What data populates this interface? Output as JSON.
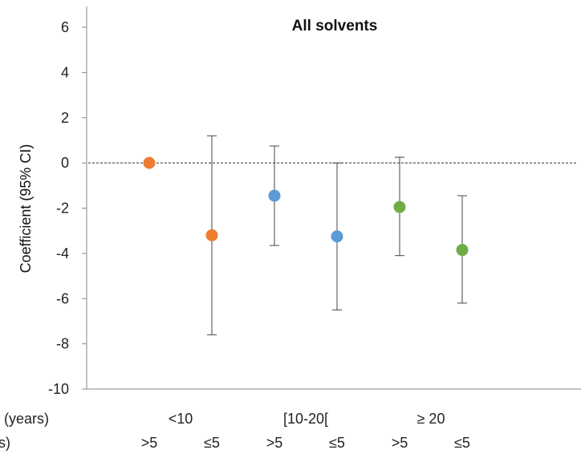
{
  "chart_data": {
    "type": "scatter",
    "title": "All solvents",
    "ylabel": "Coefficient (95% CI)",
    "ylim": [
      -10,
      7
    ],
    "yticks": [
      6,
      4,
      2,
      0,
      -2,
      -4,
      -6,
      -8,
      -10
    ],
    "grid": false,
    "reference_line": 0,
    "row_labels": [
      "(years)",
      "s)"
    ],
    "groups": [
      "<10",
      "[10-20[",
      "≥ 20"
    ],
    "subcategories": [
      ">5",
      "≤5",
      ">5",
      "≤5",
      ">5",
      "≤5"
    ],
    "points": [
      {
        "group": "<10",
        "sub": ">5",
        "estimate": 0.0,
        "ci_low": null,
        "ci_high": null,
        "color": "#ED7D31"
      },
      {
        "group": "<10",
        "sub": "≤5",
        "estimate": -3.2,
        "ci_low": -7.6,
        "ci_high": 1.2,
        "color": "#ED7D31"
      },
      {
        "group": "[10-20[",
        "sub": ">5",
        "estimate": -1.45,
        "ci_low": -3.65,
        "ci_high": 0.75,
        "color": "#5B9BD5"
      },
      {
        "group": "[10-20[",
        "sub": "≤5",
        "estimate": -3.25,
        "ci_low": -6.5,
        "ci_high": 0.0,
        "color": "#5B9BD5"
      },
      {
        "group": "≥ 20",
        "sub": ">5",
        "estimate": -1.95,
        "ci_low": -4.1,
        "ci_high": 0.25,
        "color": "#70AD47"
      },
      {
        "group": "≥ 20",
        "sub": "≤5",
        "estimate": -3.85,
        "ci_low": -6.2,
        "ci_high": -1.45,
        "color": "#70AD47"
      }
    ]
  }
}
